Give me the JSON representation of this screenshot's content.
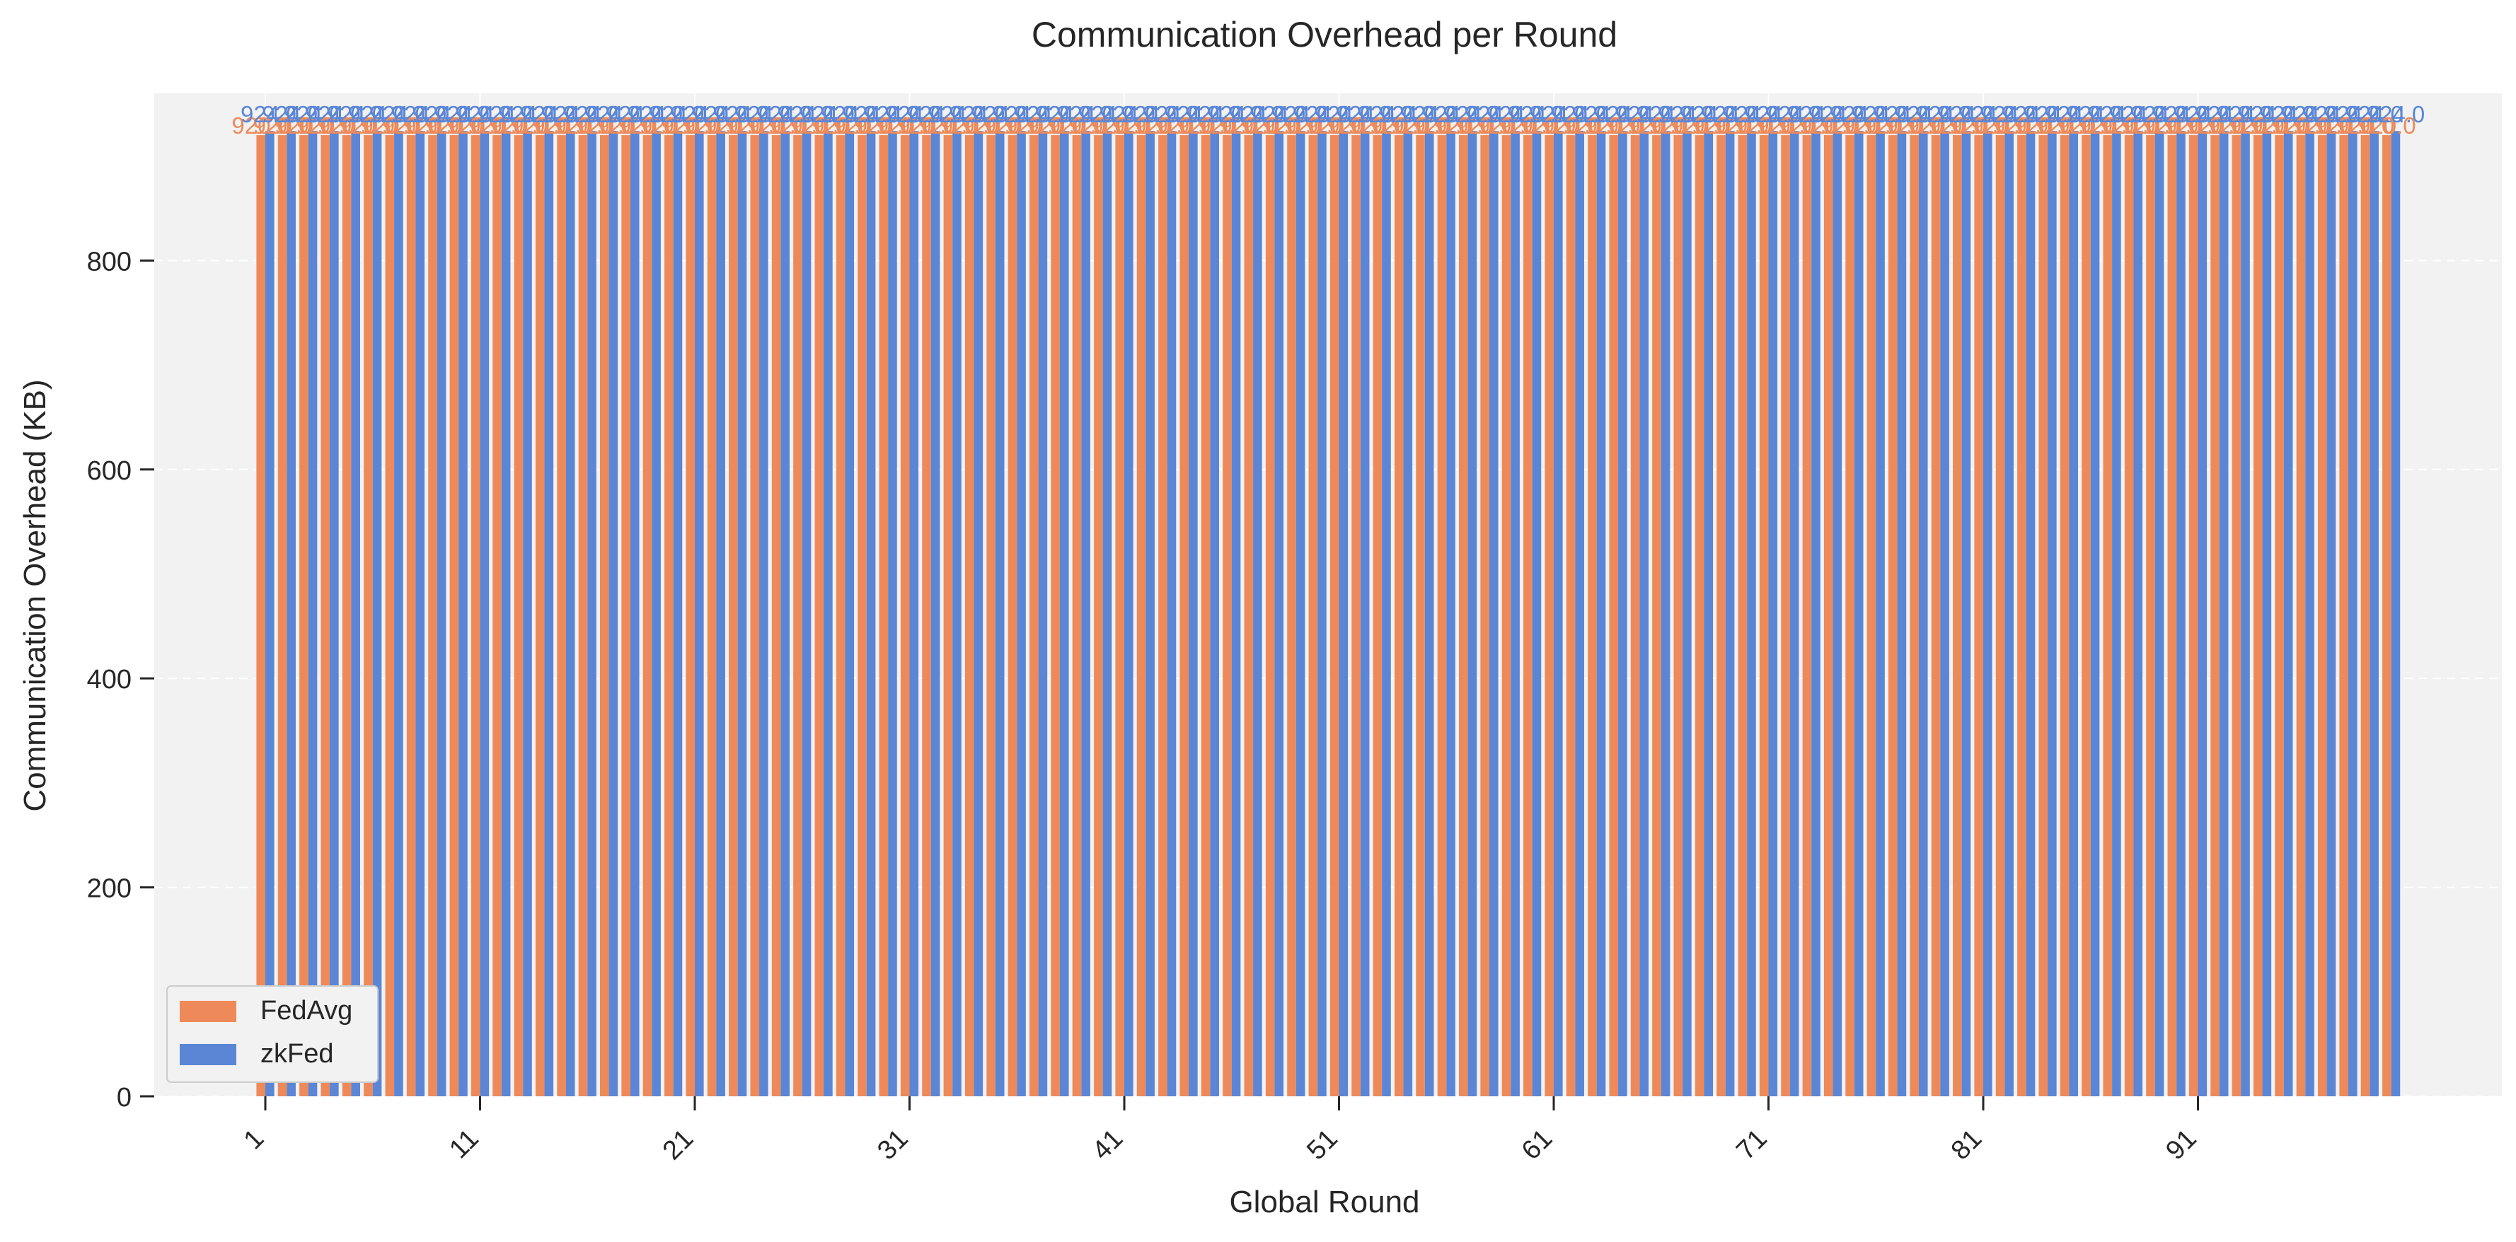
{
  "chart_data": {
    "type": "bar",
    "title": "Communication Overhead per Round",
    "xlabel": "Global Round",
    "ylabel": "Communication Overhead (KB)",
    "x_start": 1,
    "x_end": 100,
    "x_tick_labels": [
      "1",
      "11",
      "21",
      "31",
      "41",
      "51",
      "61",
      "71",
      "81",
      "91"
    ],
    "ylim": [
      0,
      960
    ],
    "yticks": [
      0,
      200,
      400,
      600,
      800
    ],
    "grid": true,
    "legend_position": "lower-left",
    "series": [
      {
        "name": "FedAvg",
        "value_each_round": 920.0,
        "label": "920.0",
        "color": "#ee8a5a"
      },
      {
        "name": "zkFed",
        "value_each_round": 924.0,
        "label": "924.0",
        "color": "#5b86d6"
      }
    ]
  },
  "colors": {
    "plot_background": "#f2f2f2",
    "grid": "#ffffff",
    "text": "#262626"
  }
}
